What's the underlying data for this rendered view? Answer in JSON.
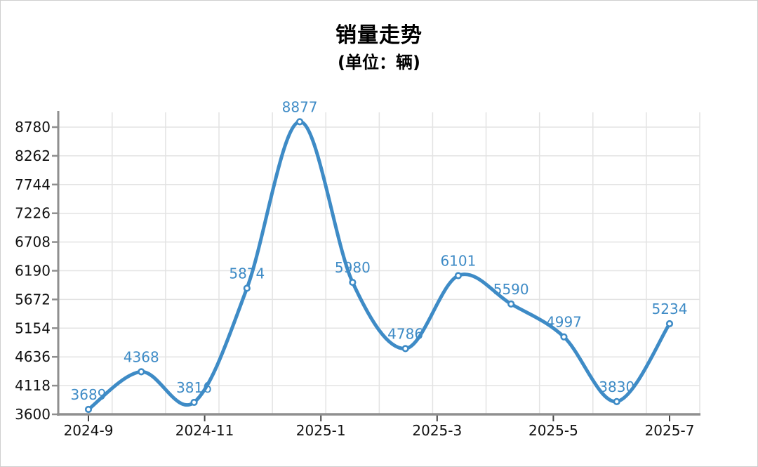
{
  "header": {
    "title": "销量走势",
    "subtitle": "(单位：辆)"
  },
  "chart_data": {
    "type": "line",
    "title": "销量走势",
    "subtitle": "(单位：辆)",
    "series": [
      {
        "name": "销量",
        "values": [
          3689,
          4368,
          3816,
          5874,
          8877,
          5980,
          4786,
          6101,
          5590,
          4997,
          3830,
          5234
        ]
      }
    ],
    "point_labels": [
      "3689",
      "4368",
      "3816",
      "5874",
      "8877",
      "5980",
      "4786",
      "6101",
      "5590",
      "4997",
      "3830",
      "5234"
    ],
    "x_tick_labels": [
      "2024-9",
      "2024-11",
      "2025-1",
      "2025-3",
      "2025-5",
      "2025-7"
    ],
    "y_tick_labels": [
      "3600",
      "4118",
      "4636",
      "5154",
      "5672",
      "6190",
      "6708",
      "7226",
      "7744",
      "8262",
      "8780"
    ],
    "y_ticks": [
      3600,
      4118,
      4636,
      5154,
      5672,
      6190,
      6708,
      7226,
      7744,
      8262,
      8780
    ],
    "ylim": [
      3600,
      8780
    ],
    "smooth": true,
    "grid": true,
    "legend": "none",
    "marker": "hollow-circle",
    "colors": {
      "line": "#3E8BC6",
      "marker_fill": "#ffffff",
      "point_label": "#3E8BC6",
      "axis_line": "#8f8f8f",
      "grid_line": "#e3e3e3",
      "x_tick_mark": "#444444",
      "axis_text": "#111111"
    }
  }
}
